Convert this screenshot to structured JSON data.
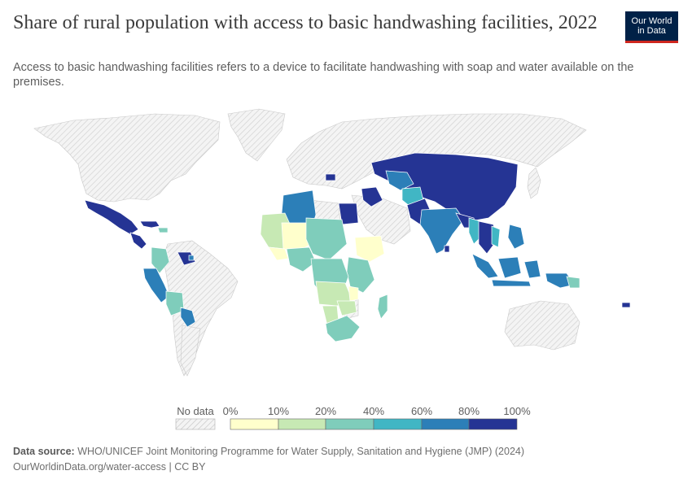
{
  "title": "Share of rural population with access to basic handwashing facilities, 2022",
  "subtitle": "Access to basic handwashing facilities refers to a device to facilitate handwashing with soap and water available on the premises.",
  "logo": {
    "line1": "Our World",
    "line2": "in Data"
  },
  "legend": {
    "no_data_label": "No data",
    "ticks": [
      "0%",
      "10%",
      "20%",
      "40%",
      "60%",
      "80%",
      "100%"
    ],
    "bins": [
      {
        "from": 0,
        "to": 10,
        "color": "#ffffcc"
      },
      {
        "from": 10,
        "to": 20,
        "color": "#c7e9b4"
      },
      {
        "from": 20,
        "to": 40,
        "color": "#7fcdbb"
      },
      {
        "from": 40,
        "to": 60,
        "color": "#41b6c4"
      },
      {
        "from": 60,
        "to": 80,
        "color": "#2c7fb8"
      },
      {
        "from": 80,
        "to": 100,
        "color": "#253494"
      }
    ]
  },
  "footer": {
    "source_label": "Data source:",
    "source_text": "WHO/UNICEF Joint Monitoring Programme for Water Supply, Sanitation and Hygiene (JMP) (2024)",
    "url": "OurWorldinData.org/water-access",
    "license": "CC BY"
  }
}
